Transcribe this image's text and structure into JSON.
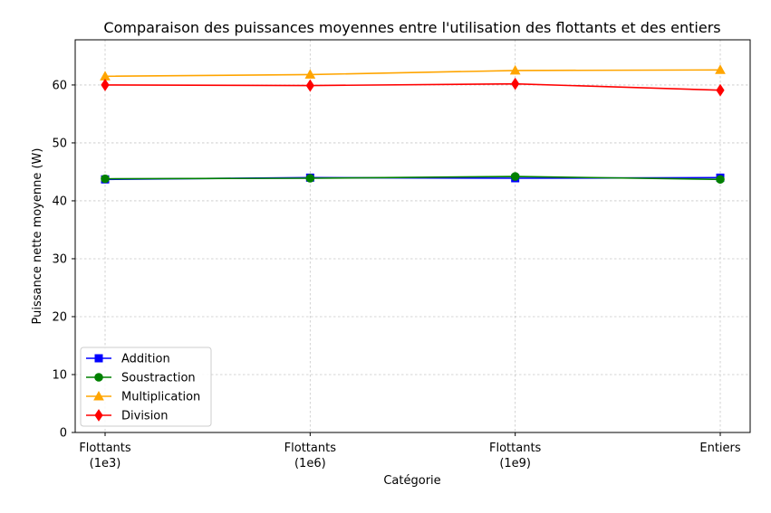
{
  "chart_data": {
    "type": "line",
    "title": "Comparaison des puissances moyennes entre l'utilisation des flottants et des entiers",
    "xlabel": "Catégorie",
    "ylabel": "Puissance nette moyenne (W)",
    "categories": [
      [
        "Flottants",
        "(1e3)"
      ],
      [
        "Flottants",
        "(1e6)"
      ],
      [
        "Flottants",
        "(1e9)"
      ],
      [
        "Entiers"
      ]
    ],
    "ylim": [
      0,
      67.8
    ],
    "yticks": [
      0,
      10,
      20,
      30,
      40,
      50,
      60
    ],
    "grid": true,
    "legend_position": "lower-left",
    "series": [
      {
        "name": "Addition",
        "color": "#0000ff",
        "marker": "square",
        "values": [
          43.7,
          44.0,
          43.9,
          44.0
        ]
      },
      {
        "name": "Soustraction",
        "color": "#008000",
        "marker": "circle",
        "values": [
          43.8,
          43.9,
          44.2,
          43.7
        ]
      },
      {
        "name": "Multiplication",
        "color": "#ffa500",
        "marker": "triangle",
        "values": [
          61.5,
          61.8,
          62.5,
          62.6
        ]
      },
      {
        "name": "Division",
        "color": "#ff0000",
        "marker": "diamond",
        "values": [
          60.0,
          59.9,
          60.2,
          59.1
        ]
      }
    ]
  }
}
